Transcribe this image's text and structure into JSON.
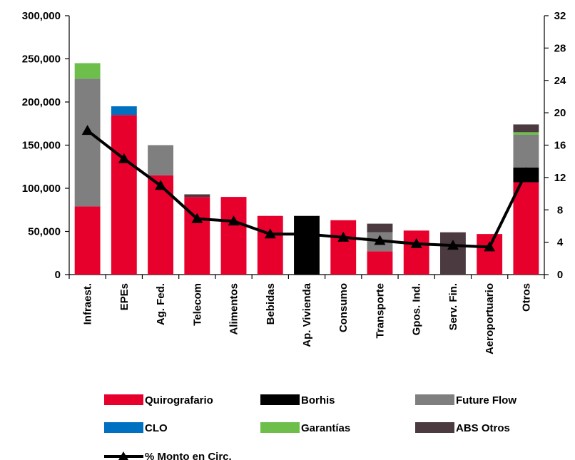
{
  "chart_data": {
    "type": "bar",
    "stacked": true,
    "title": "",
    "categories": [
      "Infraest.",
      "EPEs",
      "Ag. Fed.",
      "Telecom",
      "Alimentos",
      "Bebidas",
      "Ap. Vivienda",
      "Consumo",
      "Transporte",
      "Gpos. Ind.",
      "Serv. Fin.",
      "Aeroportuario",
      "Otros"
    ],
    "series": [
      {
        "name": "Quirografario",
        "color": "#E8002D",
        "values": [
          79000,
          185000,
          115000,
          90000,
          90000,
          68000,
          0,
          63000,
          27000,
          51000,
          0,
          47000,
          107000
        ]
      },
      {
        "name": "Borhis",
        "color": "#000000",
        "values": [
          0,
          0,
          0,
          0,
          0,
          0,
          68000,
          0,
          0,
          0,
          0,
          0,
          17000
        ]
      },
      {
        "name": "Future Flow",
        "color": "#7F7F7F",
        "values": [
          148000,
          0,
          35000,
          0,
          0,
          0,
          0,
          0,
          22000,
          0,
          0,
          0,
          38000
        ]
      },
      {
        "name": "CLO",
        "color": "#0070C0",
        "values": [
          0,
          10000,
          0,
          0,
          0,
          0,
          0,
          0,
          0,
          0,
          0,
          0,
          0
        ]
      },
      {
        "name": "Garantías",
        "color": "#6DBE4B",
        "values": [
          18000,
          0,
          0,
          0,
          0,
          0,
          0,
          0,
          0,
          0,
          0,
          0,
          3000
        ]
      },
      {
        "name": "ABS Otros",
        "color": "#4B3A40",
        "values": [
          0,
          0,
          0,
          3000,
          0,
          0,
          0,
          0,
          10000,
          0,
          49000,
          0,
          9000
        ]
      }
    ],
    "line_series": {
      "name": "% Monto en Circ.",
      "color": "#000000",
      "axis": "right",
      "values": [
        17.8,
        14.3,
        11.0,
        6.9,
        6.6,
        5.0,
        5.0,
        4.6,
        4.2,
        3.8,
        3.6,
        3.4,
        12.6
      ]
    },
    "y_left": {
      "min": 0,
      "max": 300000,
      "ticks": [
        0,
        50000,
        100000,
        150000,
        200000,
        250000,
        300000
      ],
      "tick_labels": [
        "0",
        "50,000",
        "100,000",
        "150,000",
        "200,000",
        "250,000",
        "300,000"
      ]
    },
    "y_right": {
      "min": 0,
      "max": 32,
      "ticks": [
        0,
        4,
        8,
        12,
        16,
        20,
        24,
        28,
        32
      ],
      "tick_labels": [
        "0",
        "4",
        "8",
        "12",
        "16",
        "20",
        "24",
        "28",
        "32"
      ]
    },
    "grid": false,
    "legend_position": "bottom"
  }
}
